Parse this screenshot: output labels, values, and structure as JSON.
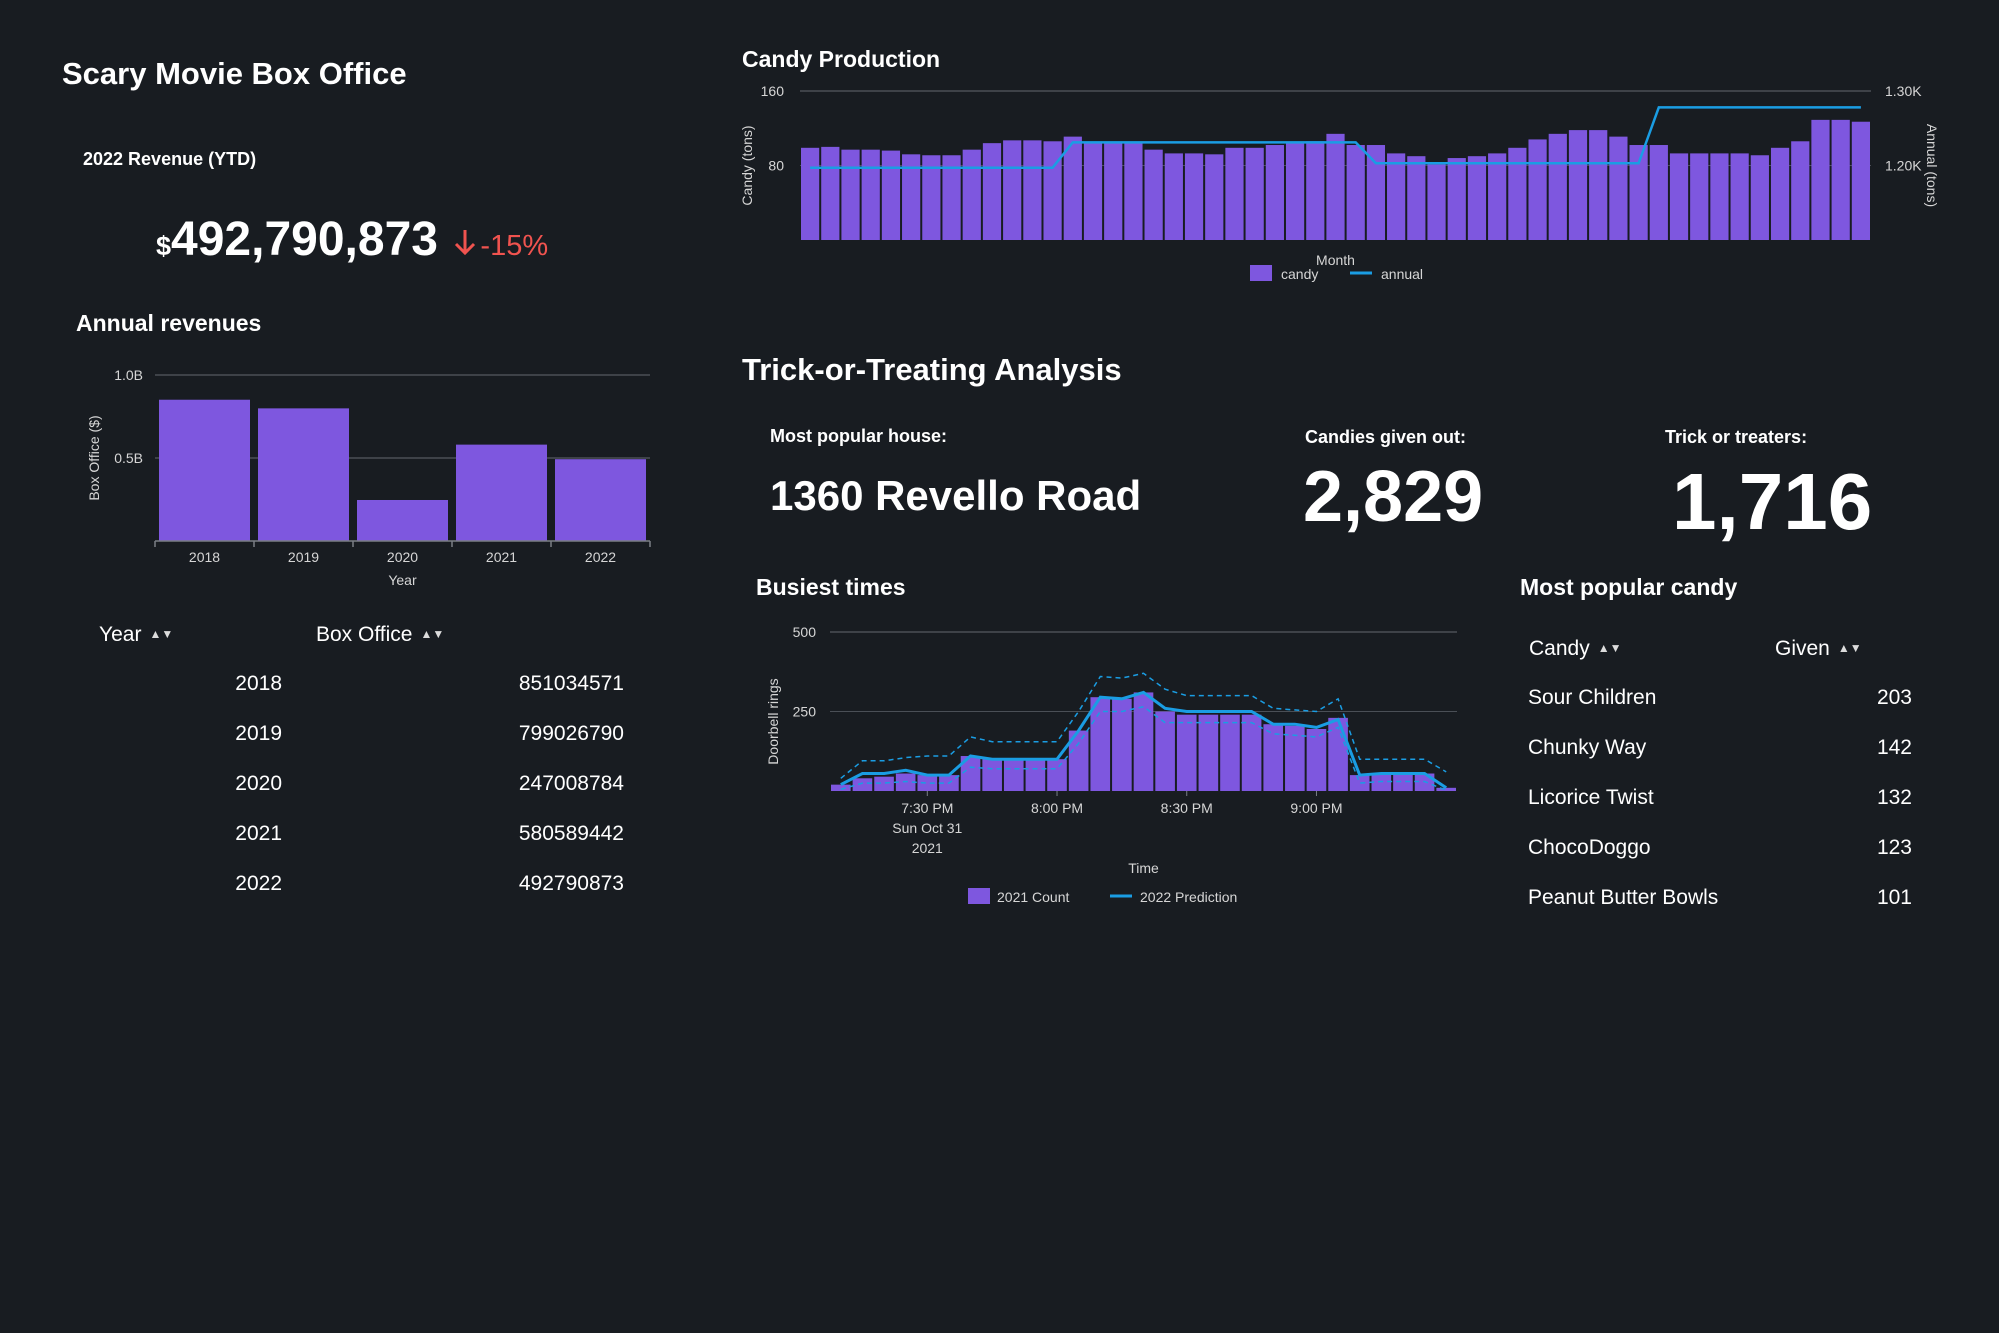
{
  "colors": {
    "purple": "#7e57df",
    "blue": "#1a9de3",
    "red": "#f0534f",
    "grid": "#4a4f56"
  },
  "left": {
    "title": "Scary Movie Box Office",
    "kpi": {
      "label": "2022 Revenue (YTD)",
      "currency": "$",
      "value": "492,790,873",
      "change": "-15%"
    },
    "annual_title": "Annual revenues",
    "table": {
      "headers": [
        "Year",
        "Box Office"
      ],
      "rows": [
        [
          "2018",
          "851034571"
        ],
        [
          "2019",
          "799026790"
        ],
        [
          "2020",
          "247008784"
        ],
        [
          "2021",
          "580589442"
        ],
        [
          "2022",
          "492790873"
        ]
      ]
    }
  },
  "candy_production": {
    "title": "Candy Production"
  },
  "trick": {
    "title": "Trick-or-Treating Analysis",
    "house_label": "Most popular house:",
    "house_value": "1360 Revello Road",
    "candies_label": "Candies given out:",
    "candies_value": "2,829",
    "treaters_label": "Trick or treaters:",
    "treaters_value": "1,716"
  },
  "busiest": {
    "title": "Busiest times"
  },
  "popular_candy": {
    "title": "Most popular candy",
    "headers": [
      "Candy",
      "Given"
    ],
    "rows": [
      [
        "Sour Children",
        "203"
      ],
      [
        "Chunky Way",
        "142"
      ],
      [
        "Licorice Twist",
        "132"
      ],
      [
        "ChocoDoggo",
        "123"
      ],
      [
        "Peanut Butter Bowls",
        "101"
      ]
    ]
  },
  "chart_data": [
    {
      "id": "annual",
      "type": "bar",
      "categories": [
        "2018",
        "2019",
        "2020",
        "2021",
        "2022"
      ],
      "values": [
        851034571,
        799026790,
        247008784,
        580589442,
        492790873
      ],
      "xlabel": "Year",
      "ylabel": "Box Office ($)",
      "ylim": [
        0,
        1000000000
      ],
      "yticks": [
        {
          "v": 500000000,
          "label": "0.5B"
        },
        {
          "v": 1000000000,
          "label": "1.0B"
        }
      ],
      "grid": true
    },
    {
      "id": "candy",
      "type": "bar",
      "xlabel": "Month",
      "ylabel": "Candy (tons)",
      "y2label": "Annual (tons)",
      "ylim": [
        0,
        160
      ],
      "yticks": [
        {
          "v": 80,
          "label": "80"
        },
        {
          "v": 160,
          "label": "160"
        }
      ],
      "y2lim": [
        1100,
        1300
      ],
      "y2ticks": [
        {
          "v": 1200,
          "label": "1.20K"
        },
        {
          "v": 1300,
          "label": "1.30K"
        }
      ],
      "legend_position": "bottom",
      "series": [
        {
          "name": "candy",
          "values": [
            99,
            100,
            97,
            97,
            96,
            92,
            91,
            91,
            97,
            104,
            107,
            107,
            106,
            111,
            104,
            104,
            104,
            97,
            93,
            93,
            92,
            99,
            99,
            102,
            104,
            106,
            114,
            102,
            102,
            93,
            90,
            81,
            88,
            90,
            93,
            99,
            108,
            114,
            118,
            118,
            111,
            102,
            102,
            93,
            93,
            93,
            93,
            91,
            99,
            106,
            129,
            129,
            127
          ]
        },
        {
          "name": "annual",
          "values": [
            1197,
            1197,
            1197,
            1197,
            1197,
            1197,
            1197,
            1197,
            1197,
            1197,
            1197,
            1197,
            1197,
            1231,
            1231,
            1231,
            1231,
            1231,
            1231,
            1231,
            1231,
            1231,
            1231,
            1231,
            1231,
            1231,
            1231,
            1231,
            1203,
            1203,
            1203,
            1203,
            1203,
            1203,
            1203,
            1203,
            1203,
            1203,
            1203,
            1203,
            1203,
            1203,
            1278,
            1278,
            1278,
            1278,
            1278,
            1278,
            1278,
            1278,
            1278,
            1278,
            1278
          ]
        }
      ]
    },
    {
      "id": "busiest",
      "type": "bar",
      "xlabel": "Time",
      "ylabel": "Doorbell rings",
      "ylim": [
        0,
        500
      ],
      "yticks": [
        {
          "v": 250,
          "label": "250"
        },
        {
          "v": 500,
          "label": "500"
        }
      ],
      "xticks": [
        {
          "i": 4.5,
          "lines": [
            "7:30 PM",
            "Sun Oct 31",
            "2021"
          ]
        },
        {
          "i": 10.5,
          "lines": [
            "8:00 PM"
          ]
        },
        {
          "i": 16.5,
          "lines": [
            "8:30 PM"
          ]
        },
        {
          "i": 22.5,
          "lines": [
            "9:00 PM"
          ]
        }
      ],
      "legend_position": "bottom",
      "series": [
        {
          "name": "2021 Count",
          "values": [
            20,
            40,
            45,
            55,
            50,
            50,
            110,
            100,
            100,
            100,
            100,
            190,
            295,
            290,
            310,
            250,
            240,
            240,
            240,
            240,
            210,
            205,
            195,
            230,
            50,
            55,
            55,
            55,
            10
          ]
        },
        {
          "name": "2022 Prediction",
          "values": [
            20,
            55,
            55,
            65,
            50,
            50,
            110,
            100,
            100,
            100,
            100,
            190,
            295,
            290,
            310,
            260,
            250,
            250,
            250,
            250,
            210,
            210,
            200,
            225,
            50,
            55,
            55,
            55,
            10
          ]
        }
      ],
      "band": {
        "upper": [
          40,
          95,
          95,
          105,
          110,
          110,
          170,
          155,
          155,
          155,
          155,
          250,
          360,
          355,
          370,
          320,
          300,
          300,
          300,
          300,
          260,
          255,
          250,
          290,
          100,
          100,
          100,
          100,
          60
        ],
        "lower": [
          5,
          25,
          25,
          30,
          25,
          25,
          75,
          70,
          70,
          70,
          70,
          150,
          250,
          250,
          265,
          215,
          215,
          215,
          215,
          215,
          180,
          175,
          170,
          200,
          25,
          30,
          30,
          30,
          2
        ]
      }
    }
  ]
}
